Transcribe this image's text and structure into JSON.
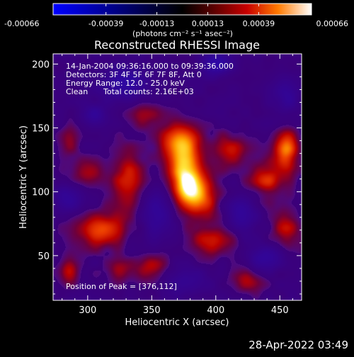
{
  "chart_data": {
    "type": "heatmap",
    "title": "Reconstructed RHESSI Image",
    "xlabel": "Heliocentric X (arcsec)",
    "ylabel": "Heliocentric Y (arcsec)",
    "xlim": [
      273,
      467
    ],
    "ylim": [
      15,
      208
    ],
    "xticks": [
      300,
      350,
      400,
      450
    ],
    "yticks": [
      50,
      100,
      150,
      200
    ],
    "colorbar": {
      "ticks": [
        -0.00066,
        -0.00039,
        -0.00013,
        0.00013,
        0.00039,
        0.00066
      ],
      "tick_labels": [
        "-0.00066",
        "-0.00039",
        "-0.00013",
        "0.00013",
        "0.00039",
        "0.00066"
      ],
      "units_label": "(photons cm⁻² s⁻¹ asec⁻²)",
      "range": [
        -0.00066,
        0.00066
      ]
    },
    "annotations": {
      "time_range": "14-Jan-2004 09:36:16.000 to 09:39:36.000",
      "detectors": "Detectors: 3F 4F 5F 6F 7F 8F, Att 0",
      "energy_range": "Energy Range: 12.0 - 25.0 keV",
      "clean_label": "Clean",
      "total_counts": "Total counts: 2.16E+03",
      "peak_position": "Position of Peak = [376,112]"
    },
    "peak": [
      376,
      112
    ],
    "sources": [
      {
        "x": 376,
        "y": 112,
        "intensity": 0.00066,
        "sx": 9,
        "sy": 16
      },
      {
        "x": 372,
        "y": 140,
        "intensity": 0.00042,
        "sx": 12,
        "sy": 10
      },
      {
        "x": 388,
        "y": 96,
        "intensity": 0.0004,
        "sx": 10,
        "sy": 12
      },
      {
        "x": 455,
        "y": 132,
        "intensity": 0.00048,
        "sx": 7,
        "sy": 12
      },
      {
        "x": 440,
        "y": 110,
        "intensity": 0.00034,
        "sx": 10,
        "sy": 10
      },
      {
        "x": 310,
        "y": 70,
        "intensity": 0.0004,
        "sx": 14,
        "sy": 10
      },
      {
        "x": 332,
        "y": 110,
        "intensity": 0.00032,
        "sx": 10,
        "sy": 18
      },
      {
        "x": 300,
        "y": 115,
        "intensity": 0.00026,
        "sx": 10,
        "sy": 8
      },
      {
        "x": 412,
        "y": 132,
        "intensity": 0.00028,
        "sx": 10,
        "sy": 10
      },
      {
        "x": 398,
        "y": 62,
        "intensity": 0.00032,
        "sx": 12,
        "sy": 9
      },
      {
        "x": 455,
        "y": 70,
        "intensity": 0.00028,
        "sx": 8,
        "sy": 14
      },
      {
        "x": 285,
        "y": 38,
        "intensity": 0.0003,
        "sx": 6,
        "sy": 8
      },
      {
        "x": 325,
        "y": 38,
        "intensity": 0.00022,
        "sx": 8,
        "sy": 6
      },
      {
        "x": 350,
        "y": 40,
        "intensity": 0.0003,
        "sx": 9,
        "sy": 8
      },
      {
        "x": 425,
        "y": 30,
        "intensity": 0.00026,
        "sx": 10,
        "sy": 7
      },
      {
        "x": 345,
        "y": 160,
        "intensity": 0.0002,
        "sx": 12,
        "sy": 8
      },
      {
        "x": 285,
        "y": 140,
        "intensity": 0.00018,
        "sx": 6,
        "sy": 10
      }
    ],
    "negative_regions": [
      {
        "x": 330,
        "y": 185,
        "intensity": -0.00038,
        "sx": 14,
        "sy": 9
      },
      {
        "x": 400,
        "y": 200,
        "intensity": -0.00045,
        "sx": 8,
        "sy": 6
      },
      {
        "x": 355,
        "y": 85,
        "intensity": -0.0003,
        "sx": 10,
        "sy": 14
      },
      {
        "x": 420,
        "y": 82,
        "intensity": -0.00032,
        "sx": 8,
        "sy": 10
      },
      {
        "x": 285,
        "y": 95,
        "intensity": -0.00026,
        "sx": 8,
        "sy": 8
      },
      {
        "x": 440,
        "y": 48,
        "intensity": -0.0003,
        "sx": 10,
        "sy": 7
      },
      {
        "x": 375,
        "y": 30,
        "intensity": -0.00022,
        "sx": 12,
        "sy": 8
      },
      {
        "x": 455,
        "y": 175,
        "intensity": -0.00025,
        "sx": 7,
        "sy": 10
      },
      {
        "x": 305,
        "y": 160,
        "intensity": -0.00024,
        "sx": 8,
        "sy": 6
      }
    ]
  },
  "footer": {
    "timestamp": "28-Apr-2022 03:49"
  }
}
